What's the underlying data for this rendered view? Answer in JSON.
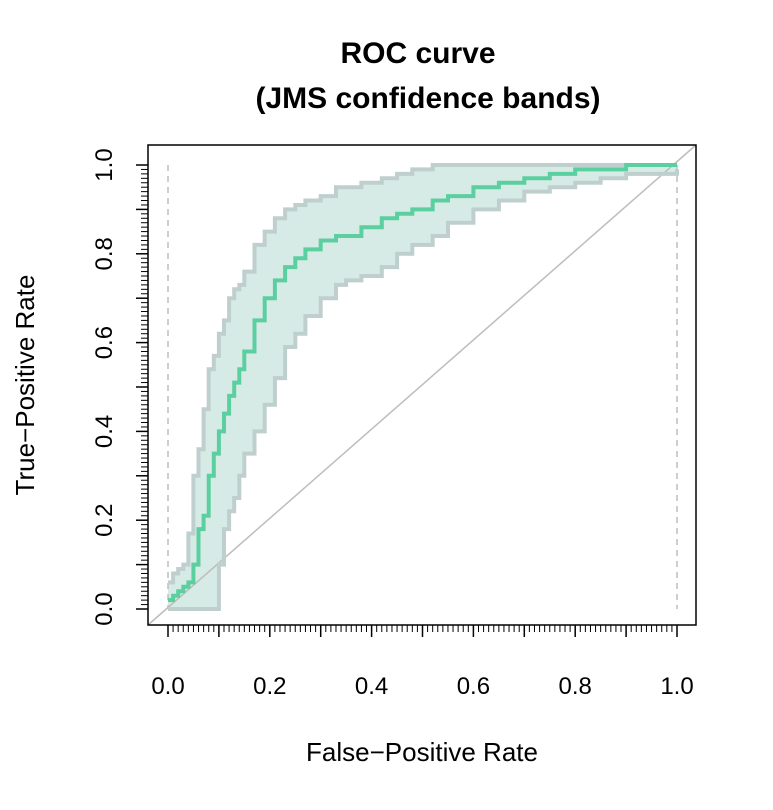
{
  "chart_data": {
    "type": "line",
    "title_line1": "ROC curve",
    "title_line2": "(JMS confidence bands)",
    "xlabel": "False−Positive Rate",
    "ylabel": "True−Positive Rate",
    "xlim": [
      0,
      1
    ],
    "ylim": [
      0,
      1
    ],
    "xticks": [
      0,
      0.2,
      0.4,
      0.6,
      0.8,
      1
    ],
    "xtick_labels": [
      "0.0",
      "0.2",
      "0.4",
      "0.6",
      "0.8",
      "1.0"
    ],
    "yticks": [
      0,
      0.2,
      0.4,
      0.6,
      0.8,
      1
    ],
    "ytick_labels": [
      "0.0",
      "0.2",
      "0.4",
      "0.6",
      "0.8",
      "1.0"
    ],
    "grid": false,
    "legend": "none",
    "colors": {
      "roc_curve": "#5ccfa1",
      "band_fill": "#d7ebe6",
      "band_edge": "#bfcfcd",
      "diagonal": "#bdbdbd",
      "vertical_guides": "#bdbdbd"
    },
    "series": [
      {
        "role": "roc",
        "x": [
          0.0,
          0.01,
          0.02,
          0.03,
          0.04,
          0.05,
          0.06,
          0.07,
          0.08,
          0.09,
          0.1,
          0.11,
          0.12,
          0.13,
          0.14,
          0.15,
          0.17,
          0.19,
          0.21,
          0.23,
          0.25,
          0.27,
          0.3,
          0.33,
          0.35,
          0.38,
          0.42,
          0.45,
          0.48,
          0.52,
          0.55,
          0.6,
          0.65,
          0.7,
          0.75,
          0.8,
          0.85,
          0.9,
          0.95,
          1.0
        ],
        "y": [
          0.02,
          0.03,
          0.04,
          0.05,
          0.06,
          0.1,
          0.18,
          0.21,
          0.3,
          0.35,
          0.4,
          0.44,
          0.48,
          0.51,
          0.54,
          0.58,
          0.65,
          0.7,
          0.74,
          0.77,
          0.79,
          0.81,
          0.83,
          0.84,
          0.84,
          0.86,
          0.88,
          0.89,
          0.9,
          0.92,
          0.93,
          0.95,
          0.96,
          0.97,
          0.98,
          0.99,
          0.99,
          1.0,
          1.0,
          1.0
        ]
      },
      {
        "role": "upper_band",
        "x": [
          0.0,
          0.01,
          0.02,
          0.03,
          0.04,
          0.05,
          0.06,
          0.07,
          0.08,
          0.09,
          0.1,
          0.11,
          0.12,
          0.13,
          0.14,
          0.15,
          0.17,
          0.19,
          0.21,
          0.23,
          0.25,
          0.27,
          0.3,
          0.33,
          0.35,
          0.38,
          0.42,
          0.45,
          0.48,
          0.52,
          0.55,
          0.57,
          0.6,
          0.65,
          0.7,
          0.75,
          0.8,
          0.85,
          0.9,
          0.95,
          1.0
        ],
        "y": [
          0.06,
          0.08,
          0.09,
          0.1,
          0.17,
          0.3,
          0.36,
          0.45,
          0.54,
          0.57,
          0.62,
          0.65,
          0.7,
          0.72,
          0.73,
          0.76,
          0.82,
          0.85,
          0.88,
          0.9,
          0.91,
          0.92,
          0.93,
          0.95,
          0.95,
          0.96,
          0.97,
          0.98,
          0.99,
          1.0,
          1.0,
          1.0,
          1.0,
          1.0,
          1.0,
          1.0,
          1.0,
          1.0,
          1.0,
          1.0,
          1.0
        ]
      },
      {
        "role": "lower_band",
        "x": [
          0.0,
          0.05,
          0.08,
          0.09,
          0.1,
          0.11,
          0.12,
          0.13,
          0.14,
          0.15,
          0.17,
          0.19,
          0.21,
          0.23,
          0.25,
          0.27,
          0.3,
          0.33,
          0.35,
          0.38,
          0.42,
          0.45,
          0.48,
          0.52,
          0.55,
          0.6,
          0.65,
          0.7,
          0.75,
          0.8,
          0.85,
          0.9,
          0.95,
          1.0
        ],
        "y": [
          0.0,
          0.0,
          0.0,
          0.0,
          0.1,
          0.18,
          0.22,
          0.25,
          0.3,
          0.35,
          0.4,
          0.46,
          0.52,
          0.59,
          0.62,
          0.66,
          0.7,
          0.73,
          0.74,
          0.75,
          0.77,
          0.8,
          0.82,
          0.84,
          0.87,
          0.9,
          0.92,
          0.94,
          0.95,
          0.96,
          0.97,
          0.98,
          0.98,
          0.99
        ]
      }
    ]
  }
}
